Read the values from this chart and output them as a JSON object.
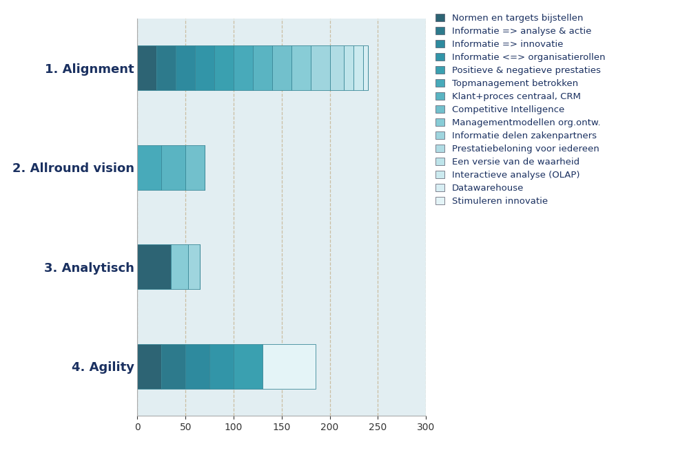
{
  "categories": [
    "4. Agility",
    "3. Analytisch",
    "2. Allround vision",
    "1. Alignment"
  ],
  "legend_labels": [
    "Normen en targets bijstellen",
    "Informatie => analyse & actie",
    "Informatie => innovatie",
    "Informatie <=> organisatierollen",
    "Positieve & negatieve prestaties",
    "Topmanagement betrokken",
    "Klant+proces centraal, CRM",
    "Competitive Intelligence",
    "Managementmodellen org.ontw.",
    "Informatie delen zakenpartners",
    "Prestatiebeloning voor iedereen",
    "Een versie van de waarheid",
    "Interactieve analyse (OLAP)",
    "Datawarehouse",
    "Stimuleren innovatie"
  ],
  "colors": [
    "#2d6474",
    "#2d7a8c",
    "#2e8a9e",
    "#3295a8",
    "#3aa0b0",
    "#48aaba",
    "#5ab4c2",
    "#72c0cc",
    "#88ccd6",
    "#9fd5de",
    "#b0dce4",
    "#bee4ea",
    "#cceaef",
    "#d8eef3",
    "#e4f4f7"
  ],
  "bar_data": {
    "1. Alignment": [
      20,
      20,
      20,
      20,
      20,
      20,
      20,
      20,
      20,
      20,
      15,
      10,
      10,
      5,
      0
    ],
    "2. Allround vision": [
      0,
      0,
      0,
      0,
      0,
      25,
      25,
      20,
      0,
      0,
      0,
      0,
      0,
      0,
      0
    ],
    "3. Analytisch": [
      35,
      0,
      0,
      0,
      0,
      0,
      0,
      0,
      18,
      12,
      0,
      0,
      0,
      0,
      0
    ],
    "4. Agility": [
      25,
      25,
      25,
      25,
      30,
      0,
      0,
      0,
      0,
      0,
      0,
      0,
      0,
      0,
      55
    ]
  },
  "xlim": [
    0,
    300
  ],
  "xticks": [
    0,
    50,
    100,
    150,
    200,
    250,
    300
  ],
  "plot_bg_color": "#e2eef2",
  "fig_bg_color": "#ffffff",
  "grid_color": "#c8b99a",
  "edge_color": "#3a8898",
  "label_color": "#1a3060",
  "bar_height": 0.45,
  "legend_fontsize": 9.5,
  "ytick_fontsize": 13
}
